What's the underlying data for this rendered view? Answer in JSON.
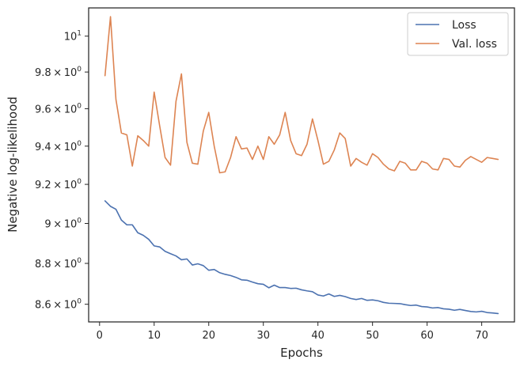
{
  "chart_data": {
    "type": "line",
    "xlabel": "Epochs",
    "ylabel": "Negative log-likelihood",
    "yscale": "log",
    "xlim": [
      -2,
      76
    ],
    "ylim": [
      8.515,
      10.16
    ],
    "grid": false,
    "legend_position": "top-right",
    "x_ticks": [
      {
        "value": 0,
        "label": "0"
      },
      {
        "value": 10,
        "label": "10"
      },
      {
        "value": 20,
        "label": "20"
      },
      {
        "value": 30,
        "label": "30"
      },
      {
        "value": 40,
        "label": "40"
      },
      {
        "value": 50,
        "label": "50"
      },
      {
        "value": 60,
        "label": "60"
      },
      {
        "value": 70,
        "label": "70"
      }
    ],
    "y_ticks": [
      {
        "value": 8.6,
        "mantissa": "8.6",
        "exp": "0"
      },
      {
        "value": 8.8,
        "mantissa": "8.8",
        "exp": "0"
      },
      {
        "value": 9.0,
        "mantissa": "9",
        "exp": "0"
      },
      {
        "value": 9.2,
        "mantissa": "9.2",
        "exp": "0"
      },
      {
        "value": 9.4,
        "mantissa": "9.4",
        "exp": "0"
      },
      {
        "value": 9.6,
        "mantissa": "9.6",
        "exp": "0"
      },
      {
        "value": 9.8,
        "mantissa": "9.8",
        "exp": "0"
      },
      {
        "value": 10.0,
        "mantissa": "10",
        "exp": "1"
      }
    ],
    "x": [
      1,
      2,
      3,
      4,
      5,
      6,
      7,
      8,
      9,
      10,
      11,
      12,
      13,
      14,
      15,
      16,
      17,
      18,
      19,
      20,
      21,
      22,
      23,
      24,
      25,
      26,
      27,
      28,
      29,
      30,
      31,
      32,
      33,
      34,
      35,
      36,
      37,
      38,
      39,
      40,
      41,
      42,
      43,
      44,
      45,
      46,
      47,
      48,
      49,
      50,
      51,
      52,
      53,
      54,
      55,
      56,
      57,
      58,
      59,
      60,
      61,
      62,
      63,
      64,
      65,
      66,
      67,
      68,
      69,
      70,
      71,
      72,
      73
    ],
    "series": [
      {
        "name": "Loss",
        "color": "#4c72b0",
        "values": [
          9.115,
          9.087,
          9.072,
          9.017,
          8.993,
          8.993,
          8.953,
          8.94,
          8.92,
          8.887,
          8.882,
          8.86,
          8.848,
          8.837,
          8.818,
          8.822,
          8.792,
          8.798,
          8.789,
          8.766,
          8.77,
          8.754,
          8.746,
          8.74,
          8.731,
          8.719,
          8.717,
          8.708,
          8.7,
          8.697,
          8.68,
          8.693,
          8.681,
          8.681,
          8.677,
          8.678,
          8.67,
          8.665,
          8.661,
          8.645,
          8.64,
          8.65,
          8.638,
          8.643,
          8.637,
          8.628,
          8.623,
          8.628,
          8.619,
          8.621,
          8.617,
          8.609,
          8.605,
          8.604,
          8.603,
          8.598,
          8.594,
          8.596,
          8.589,
          8.587,
          8.582,
          8.584,
          8.578,
          8.576,
          8.571,
          8.575,
          8.57,
          8.565,
          8.563,
          8.566,
          8.56,
          8.558,
          8.555
        ]
      },
      {
        "name": "Val. loss",
        "color": "#dd8452",
        "values": [
          9.78,
          10.11,
          9.65,
          9.47,
          9.46,
          9.295,
          9.455,
          9.43,
          9.4,
          9.69,
          9.51,
          9.34,
          9.3,
          9.64,
          9.79,
          9.42,
          9.31,
          9.305,
          9.48,
          9.58,
          9.4,
          9.26,
          9.265,
          9.34,
          9.45,
          9.385,
          9.39,
          9.33,
          9.4,
          9.33,
          9.45,
          9.41,
          9.46,
          9.58,
          9.43,
          9.36,
          9.35,
          9.41,
          9.545,
          9.43,
          9.305,
          9.32,
          9.38,
          9.47,
          9.44,
          9.295,
          9.335,
          9.315,
          9.3,
          9.36,
          9.34,
          9.305,
          9.28,
          9.27,
          9.32,
          9.31,
          9.275,
          9.275,
          9.32,
          9.31,
          9.28,
          9.275,
          9.335,
          9.33,
          9.295,
          9.29,
          9.325,
          9.345,
          9.33,
          9.315,
          9.34,
          9.335,
          9.33
        ]
      }
    ]
  }
}
